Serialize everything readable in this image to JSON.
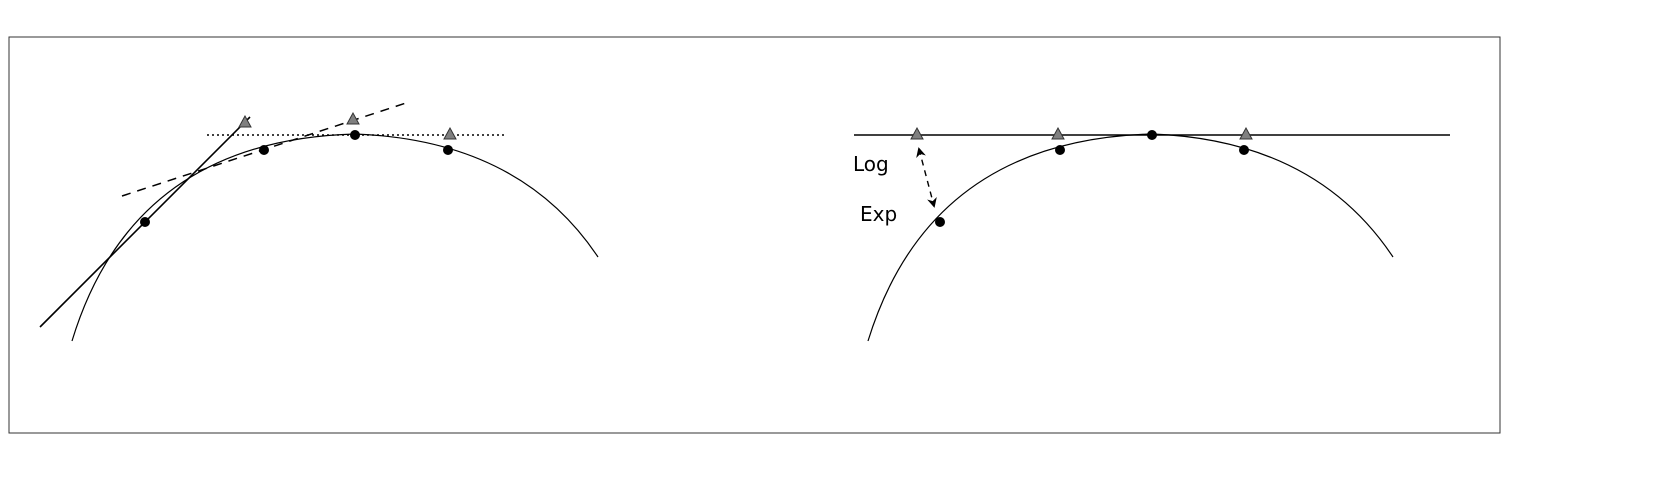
{
  "labels": {
    "log": "Log",
    "exp": "Exp"
  },
  "colors": {
    "stroke": "#000000",
    "triangle_fill": "#808080",
    "frame": "#333333"
  }
}
